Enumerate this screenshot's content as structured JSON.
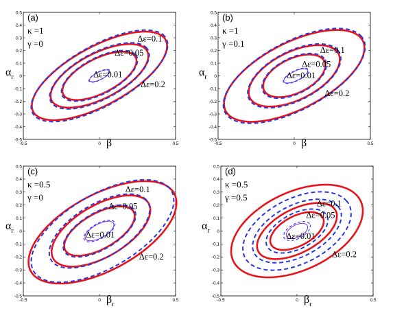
{
  "colors": {
    "exact": "#e8141b",
    "approx": "#2a38e0",
    "inner_exact": "#8a2be2",
    "inner_approx": "#3040ff"
  },
  "chart_data": [
    {
      "type": "line",
      "panel_label": "(a)",
      "params": [
        {
          "symbol": "κ",
          "value": "=1"
        },
        {
          "symbol": "γ",
          "value": "=0"
        }
      ],
      "xlabel": {
        "main": "β",
        "sub": ""
      },
      "ylabel": {
        "main": "α",
        "sub": "r"
      },
      "xlim": [
        -0.5,
        0.5
      ],
      "ylim": [
        -0.5,
        0.5
      ],
      "xticks": [
        "-0.5",
        "0",
        "0.5"
      ],
      "yticks": [
        "0.5",
        "0.4",
        "0.3",
        "0.2",
        "0.1",
        "0",
        "-0.1",
        "-0.2",
        "-0.3",
        "-0.4",
        "-0.5"
      ],
      "grid": false,
      "contours": [
        {
          "label": "Δε=0.01",
          "label_at": [
            -0.04,
            -0.01
          ],
          "solid": {
            "center": [
              0.0,
              0.0
            ],
            "a": 0.075,
            "b": 0.028,
            "angle": 32
          },
          "dashed": {
            "center": [
              0.0,
              0.0
            ],
            "a": 0.08,
            "b": 0.03,
            "angle": 33
          }
        },
        {
          "label": "Δε=0.05",
          "label_at": [
            0.1,
            0.16
          ],
          "solid": {
            "center": [
              0.0,
              0.0
            ],
            "a": 0.28,
            "b": 0.13,
            "angle": 34
          },
          "dashed": {
            "center": [
              0.0,
              0.0
            ],
            "a": 0.29,
            "b": 0.135,
            "angle": 35
          }
        },
        {
          "label": "Δε=0.1",
          "label_at": [
            0.25,
            0.27
          ],
          "solid": {
            "center": [
              0.0,
              0.0
            ],
            "a": 0.37,
            "b": 0.17,
            "angle": 34
          },
          "dashed": {
            "center": [
              0.0,
              0.0
            ],
            "a": 0.38,
            "b": 0.175,
            "angle": 35
          }
        },
        {
          "label": "Δε=0.2",
          "label_at": [
            0.27,
            -0.09
          ],
          "solid": {
            "center": [
              0.0,
              0.0
            ],
            "a": 0.52,
            "b": 0.22,
            "angle": 35
          },
          "dashed": {
            "center": [
              0.0,
              0.0
            ],
            "a": 0.53,
            "b": 0.225,
            "angle": 36
          }
        }
      ]
    },
    {
      "type": "line",
      "panel_label": "(b)",
      "params": [
        {
          "symbol": "κ",
          "value": "=1"
        },
        {
          "symbol": "γ",
          "value": "=0.1"
        }
      ],
      "xlabel": {
        "main": "β",
        "sub": ""
      },
      "ylabel": {
        "main": "α",
        "sub": "r"
      },
      "xlim": [
        -0.5,
        0.5
      ],
      "ylim": [
        -0.5,
        0.5
      ],
      "xticks": [
        "-0.5",
        "0",
        "0.5"
      ],
      "yticks": [
        "0.5",
        "0.4",
        "0.3",
        "0.2",
        "0.1",
        "0",
        "-0.1",
        "-0.2",
        "-0.3",
        "-0.4",
        "-0.5"
      ],
      "grid": false,
      "contours": [
        {
          "label": "Δε=0.01",
          "label_at": [
            -0.05,
            -0.02
          ],
          "solid": {
            "center": [
              0.01,
              0.0
            ],
            "a": 0.09,
            "b": 0.035,
            "angle": 32
          },
          "dashed": {
            "center": [
              0.01,
              0.0
            ],
            "a": 0.095,
            "b": 0.038,
            "angle": 33
          }
        },
        {
          "label": "Δε=0.05",
          "label_at": [
            0.05,
            0.07
          ],
          "solid": {
            "center": [
              0.0,
              0.0
            ],
            "a": 0.23,
            "b": 0.13,
            "angle": 34
          },
          "dashed": {
            "center": [
              0.0,
              0.0
            ],
            "a": 0.24,
            "b": 0.135,
            "angle": 35
          }
        },
        {
          "label": "Δε=0.1",
          "label_at": [
            0.17,
            0.18
          ],
          "solid": {
            "center": [
              0.0,
              0.0
            ],
            "a": 0.34,
            "b": 0.18,
            "angle": 34
          },
          "dashed": {
            "center": [
              0.0,
              0.0
            ],
            "a": 0.35,
            "b": 0.185,
            "angle": 35
          }
        },
        {
          "label": "Δε=0.2",
          "label_at": [
            0.2,
            -0.16
          ],
          "solid": {
            "center": [
              0.0,
              0.0
            ],
            "a": 0.53,
            "b": 0.25,
            "angle": 34
          },
          "dashed": {
            "center": [
              0.0,
              0.0
            ],
            "a": 0.54,
            "b": 0.255,
            "angle": 35
          }
        }
      ]
    },
    {
      "type": "line",
      "panel_label": "(c)",
      "params": [
        {
          "symbol": "κ",
          "value": "=0.5"
        },
        {
          "symbol": "γ",
          "value": "=0"
        }
      ],
      "xlabel": {
        "main": "β",
        "sub": "r"
      },
      "ylabel": {
        "main": "α",
        "sub": "r"
      },
      "xlim": [
        -0.5,
        0.5
      ],
      "ylim": [
        -0.5,
        0.5
      ],
      "xticks": [
        "-0.5",
        "0",
        "0.5"
      ],
      "yticks": [
        "0.5",
        "0.4",
        "0.3",
        "0.2",
        "0.1",
        "0",
        "-0.1",
        "-0.2",
        "-0.3",
        "-0.4",
        "-0.5"
      ],
      "grid": false,
      "contours": [
        {
          "label": "Δε=0.01",
          "label_at": [
            -0.09,
            -0.05
          ],
          "solid": {
            "center": [
              0.0,
              0.0
            ],
            "a": 0.11,
            "b": 0.05,
            "angle": 35
          },
          "dashed": {
            "center": [
              0.0,
              0.0
            ],
            "a": 0.12,
            "b": 0.055,
            "angle": 36
          }
        },
        {
          "label": "Δε=0.05",
          "label_at": [
            0.06,
            0.17
          ],
          "solid": {
            "center": [
              0.0,
              0.0
            ],
            "a": 0.27,
            "b": 0.13,
            "angle": 36
          },
          "dashed": {
            "center": [
              0.0,
              0.0
            ],
            "a": 0.28,
            "b": 0.135,
            "angle": 37
          }
        },
        {
          "label": "Δε=0.1",
          "label_at": [
            0.17,
            0.3
          ],
          "solid": {
            "center": [
              0.01,
              0.0
            ],
            "a": 0.38,
            "b": 0.19,
            "angle": 37
          },
          "dashed": {
            "center": [
              0.0,
              0.0
            ],
            "a": 0.39,
            "b": 0.195,
            "angle": 38
          }
        },
        {
          "label": "Δε=0.2",
          "label_at": [
            0.26,
            -0.22
          ],
          "solid": {
            "center": [
              0.02,
              -0.01
            ],
            "a": 0.56,
            "b": 0.28,
            "angle": 35
          },
          "dashed": {
            "center": [
              0.02,
              0.0
            ],
            "a": 0.55,
            "b": 0.27,
            "angle": 37
          }
        }
      ]
    },
    {
      "type": "line",
      "panel_label": "(d)",
      "params": [
        {
          "symbol": "κ",
          "value": "=0.5"
        },
        {
          "symbol": "γ",
          "value": "=0.5"
        }
      ],
      "xlabel": {
        "main": "β",
        "sub": "r"
      },
      "ylabel": {
        "main": "α",
        "sub": "r"
      },
      "xlim": [
        -0.5,
        0.5
      ],
      "ylim": [
        -0.5,
        0.5
      ],
      "xticks": [
        "-0.5",
        "0",
        "0.5"
      ],
      "yticks": [
        "0.5",
        "0.4",
        "0.3",
        "0.2",
        "0.1",
        "0",
        "-0.1",
        "-0.2",
        "-0.3",
        "-0.4",
        "-0.5"
      ],
      "grid": false,
      "contours": [
        {
          "label": "Δε=0.01",
          "label_at": [
            -0.07,
            -0.06
          ],
          "solid": {
            "center": [
              0.0,
              0.0
            ],
            "a": 0.08,
            "b": 0.045,
            "angle": 35
          },
          "dashed": {
            "center": [
              0.0,
              0.0
            ],
            "a": 0.1,
            "b": 0.055,
            "angle": 35
          }
        },
        {
          "label": "Δε=0.05",
          "label_at": [
            0.06,
            0.1
          ],
          "solid": {
            "center": [
              0.0,
              0.0
            ],
            "a": 0.2,
            "b": 0.11,
            "angle": 35
          },
          "dashed": {
            "center": [
              0.0,
              0.0
            ],
            "a": 0.23,
            "b": 0.13,
            "angle": 35
          }
        },
        {
          "label": "Δε=0.1",
          "label_at": [
            0.13,
            0.19
          ],
          "solid": {
            "center": [
              0.0,
              0.0
            ],
            "a": 0.3,
            "b": 0.16,
            "angle": 35
          },
          "dashed": {
            "center": [
              0.0,
              0.0
            ],
            "a": 0.33,
            "b": 0.19,
            "angle": 35
          }
        },
        {
          "label": "Δε=0.2",
          "label_at": [
            0.23,
            -0.2
          ],
          "solid": {
            "center": [
              0.0,
              0.0
            ],
            "a": 0.48,
            "b": 0.29,
            "angle": 33
          },
          "dashed": {
            "center": [
              0.0,
              0.0
            ],
            "a": 0.4,
            "b": 0.24,
            "angle": 35
          }
        }
      ]
    }
  ]
}
